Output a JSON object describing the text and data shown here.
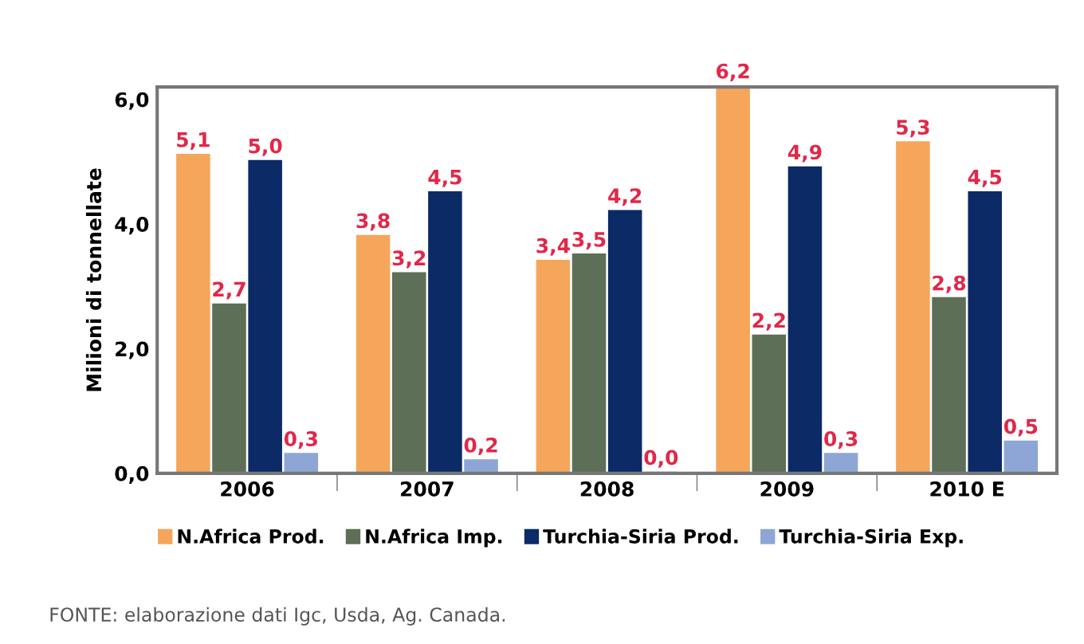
{
  "chart_data": {
    "type": "bar",
    "ylabel": "Milioni di tonnellate",
    "categories": [
      "2006",
      "2007",
      "2008",
      "2009",
      "2010 E"
    ],
    "series": [
      {
        "name": "N.Africa Prod.",
        "color": "#f5a65b",
        "values": [
          5.1,
          3.8,
          3.4,
          6.2,
          5.3
        ],
        "value_labels": [
          "5,1",
          "3,8",
          "3,4",
          "6,2",
          "5,3"
        ]
      },
      {
        "name": "N.Africa Imp.",
        "color": "#5e6f58",
        "values": [
          2.7,
          3.2,
          3.5,
          2.2,
          2.8
        ],
        "value_labels": [
          "2,7",
          "3,2",
          "3,5",
          "2,2",
          "2,8"
        ]
      },
      {
        "name": "Turchia-Siria Prod.",
        "color": "#0b2a66",
        "values": [
          5.0,
          4.5,
          4.2,
          4.9,
          4.5
        ],
        "value_labels": [
          "5,0",
          "4,5",
          "4,2",
          "4,9",
          "4,5"
        ]
      },
      {
        "name": "Turchia-Siria Exp.",
        "color": "#8ea6d6",
        "values": [
          0.3,
          0.2,
          0.0,
          0.3,
          0.5
        ],
        "value_labels": [
          "0,3",
          "0,2",
          "0,0",
          "0,3",
          "0,5"
        ]
      }
    ],
    "ylim": [
      0,
      6.2
    ],
    "yticks": [
      {
        "value": 0,
        "label": "0,0"
      },
      {
        "value": 2,
        "label": "2,0"
      },
      {
        "value": 4,
        "label": "4,0"
      },
      {
        "value": 6,
        "label": "6,0"
      }
    ],
    "grid": false,
    "legend": "bottom",
    "annotations": [
      "FONTE: elaborazione dati Igc, Usda, Ag. Canada."
    ]
  }
}
